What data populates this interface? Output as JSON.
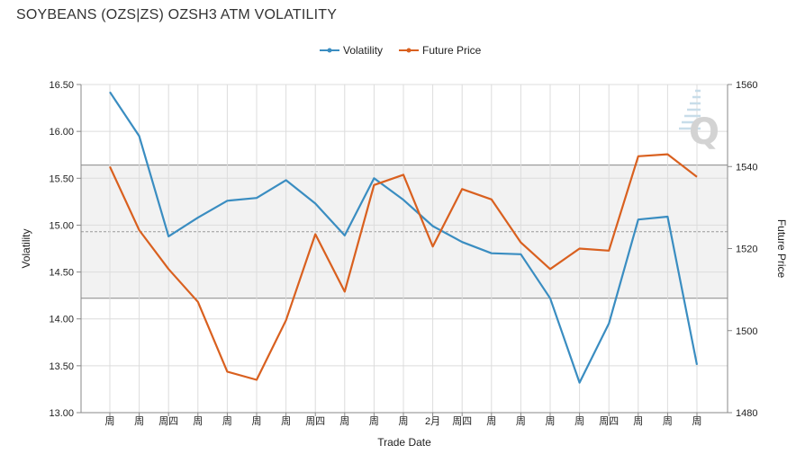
{
  "title": "SOYBEANS (OZS|ZS) OZSH3 ATM VOLATILITY",
  "colors": {
    "volatility": "#3a8dc1",
    "future_price": "#d9601f",
    "band": "#f2f2f2",
    "grid": "#dcdcdc"
  },
  "chart_data": {
    "type": "line",
    "title": "SOYBEANS (OZS|ZS) OZSH3 ATM VOLATILITY",
    "xlabel": "Trade Date",
    "ylabel": "Volatility",
    "y2label": "Future Price",
    "ylim": [
      13.0,
      16.5
    ],
    "y2lim": [
      1480,
      1560
    ],
    "y_ticks": [
      "16.50",
      "16.00",
      "15.50",
      "15.00",
      "14.50",
      "14.00",
      "13.50",
      "13.00"
    ],
    "y2_ticks": [
      "1560",
      "1540",
      "1520",
      "1500",
      "1480"
    ],
    "categories": [
      "周",
      "周",
      "周四",
      "周",
      "周",
      "周",
      "周",
      "周四",
      "周",
      "周",
      "周",
      "2月",
      "周四",
      "周",
      "周",
      "周",
      "周",
      "周四",
      "周",
      "周",
      "周"
    ],
    "band": {
      "upper": 15.64,
      "lower": 14.22,
      "mean": 14.93
    },
    "legend": "top-center",
    "grid": true,
    "series": [
      {
        "name": "Volatility",
        "axis": "left",
        "values": [
          16.42,
          15.95,
          14.88,
          15.08,
          15.26,
          15.29,
          15.48,
          15.23,
          14.89,
          15.5,
          15.27,
          14.99,
          14.82,
          14.7,
          14.69,
          14.22,
          13.32,
          13.95,
          15.06,
          15.09,
          13.51
        ]
      },
      {
        "name": "Future Price",
        "axis": "right",
        "values": [
          1540.0,
          1524.5,
          1515.0,
          1507.0,
          1490.0,
          1488.0,
          1502.5,
          1523.5,
          1509.5,
          1535.5,
          1538.0,
          1520.5,
          1534.5,
          1532.0,
          1521.5,
          1515.0,
          1520.0,
          1519.5,
          1542.5,
          1543.0,
          1537.5
        ]
      }
    ]
  }
}
